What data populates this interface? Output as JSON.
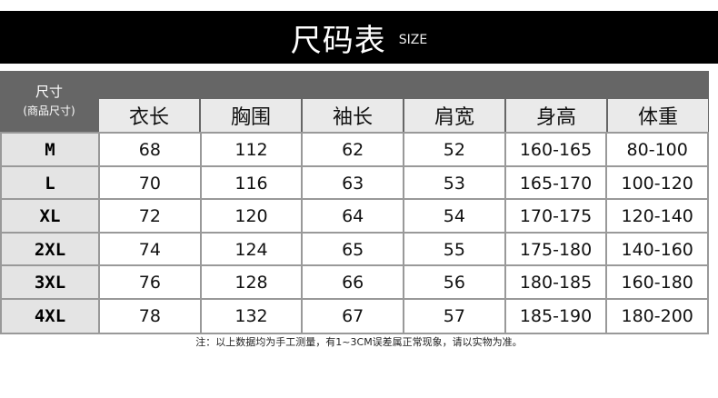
{
  "title": "尺码表",
  "subtitle": "SIZE",
  "corner": {
    "line1": "尺寸",
    "line2": "(商品尺寸)"
  },
  "headers": [
    "衣长",
    "胸围",
    "袖长",
    "肩宽",
    "身高",
    "体重"
  ],
  "rows": [
    {
      "size": "M",
      "values": [
        "68",
        "112",
        "62",
        "52",
        "160-165",
        "80-100"
      ]
    },
    {
      "size": "L",
      "values": [
        "70",
        "116",
        "63",
        "53",
        "165-170",
        "100-120"
      ]
    },
    {
      "size": "XL",
      "values": [
        "72",
        "120",
        "64",
        "54",
        "170-175",
        "120-140"
      ]
    },
    {
      "size": "2XL",
      "values": [
        "74",
        "124",
        "65",
        "55",
        "175-180",
        "140-160"
      ]
    },
    {
      "size": "3XL",
      "values": [
        "76",
        "128",
        "66",
        "56",
        "180-185",
        "160-180"
      ]
    },
    {
      "size": "4XL",
      "values": [
        "78",
        "132",
        "67",
        "57",
        "185-190",
        "180-200"
      ]
    }
  ],
  "note": "注：以上数据均为手工测量，有1~3CM误差属正常现象，请以实物为准。"
}
